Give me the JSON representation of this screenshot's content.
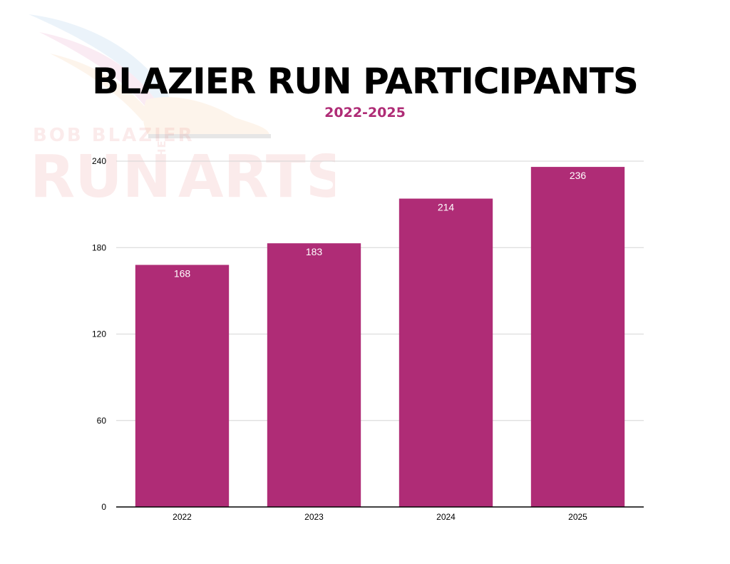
{
  "header": {
    "title": "BLAZIER RUN PARTICIPANTS",
    "subtitle": "2022-2025"
  },
  "watermark": {
    "line1": "BOB BLAZIER",
    "line2": "RUN",
    "line3": "FOR THE",
    "line4": "ARTS"
  },
  "colors": {
    "bar": "#AF2C76",
    "subtitle": "#AF2C76",
    "grid": "#D6D6D6",
    "axis": "#000000"
  },
  "chart_data": {
    "type": "bar",
    "title": "BLAZIER RUN PARTICIPANTS",
    "subtitle": "2022-2025",
    "xlabel": "",
    "ylabel": "",
    "categories": [
      "2022",
      "2023",
      "2024",
      "2025"
    ],
    "values": [
      168,
      183,
      214,
      236
    ],
    "data_labels": [
      "168",
      "183",
      "214",
      "236"
    ],
    "ylim": [
      0,
      240
    ],
    "yticks": [
      0,
      60,
      120,
      180,
      240
    ],
    "ytick_labels": [
      "0",
      "60",
      "120",
      "180",
      "240"
    ],
    "grid": true,
    "legend": "none"
  }
}
